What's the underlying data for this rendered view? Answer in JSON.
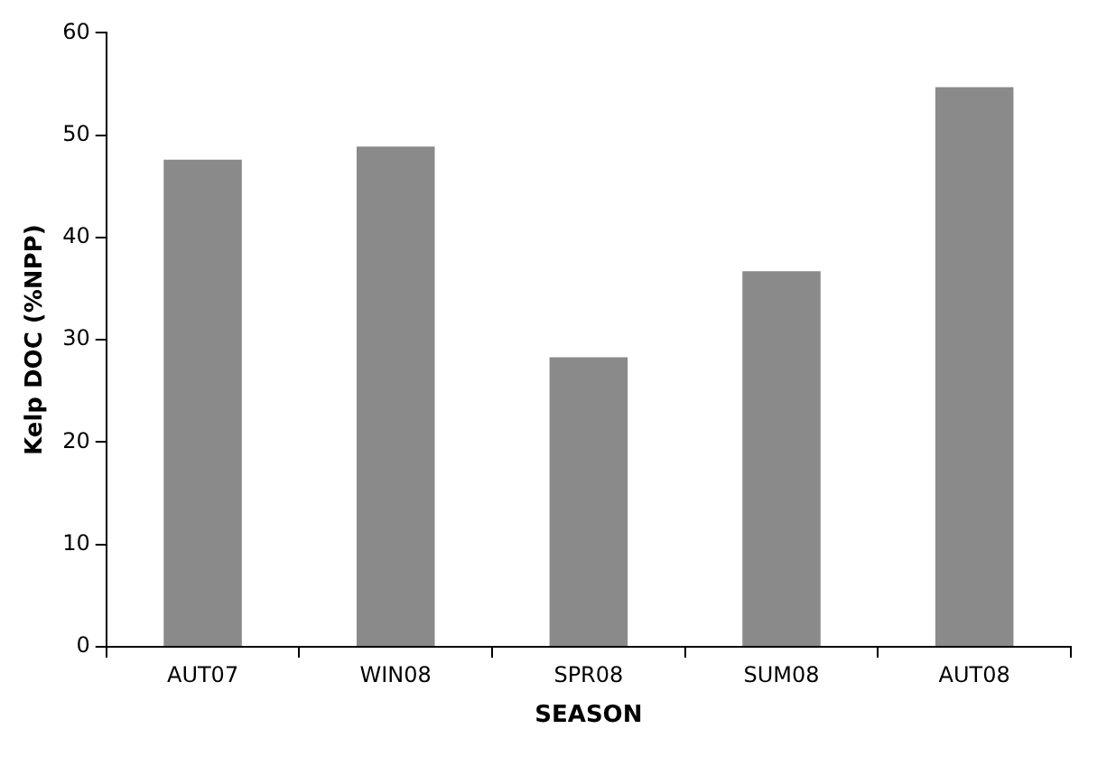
{
  "chart_data": {
    "type": "bar",
    "xlabel": "SEASON",
    "ylabel": "Kelp DOC (%NPP)",
    "categories": [
      "AUT07",
      "WIN08",
      "SPR08",
      "SUM08",
      "AUT08"
    ],
    "values": [
      47.6,
      48.9,
      28.3,
      36.7,
      54.7
    ],
    "color": "#8a8a8a",
    "ylim": [
      0,
      60
    ],
    "yticks": [
      0,
      10,
      20,
      30,
      40,
      50,
      60
    ],
    "grid": false,
    "legend": false
  }
}
